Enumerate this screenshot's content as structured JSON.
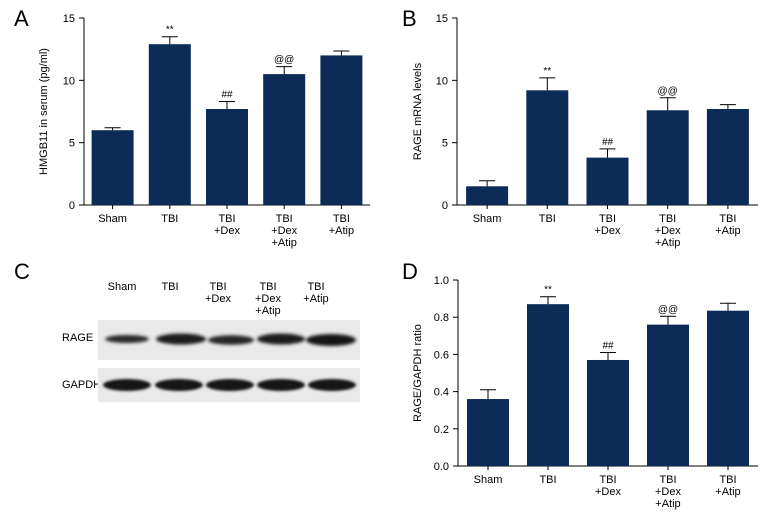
{
  "panels": {
    "a": {
      "letter": "A"
    },
    "b": {
      "letter": "B"
    },
    "c": {
      "letter": "C"
    },
    "d": {
      "letter": "D"
    }
  },
  "bar_color": "#0c2b57",
  "western_blot": {
    "lanes": [
      {
        "lines": [
          "Sham"
        ]
      },
      {
        "lines": [
          "TBI"
        ]
      },
      {
        "lines": [
          "TBI",
          "+Dex"
        ]
      },
      {
        "lines": [
          "TBI",
          "+Dex",
          "+Atip"
        ]
      },
      {
        "lines": [
          "TBI",
          "+Atip"
        ]
      }
    ],
    "rows": [
      "RAGE",
      "GAPDH"
    ]
  },
  "chart_data": [
    {
      "type": "bar",
      "panel": "A",
      "ylabel": "HMGB11 in serum (pg/ml)",
      "xlabel": "",
      "ylim": [
        0,
        15
      ],
      "yticks": [
        0,
        5,
        10,
        15
      ],
      "ytick_labels": [
        "0",
        "5",
        "10",
        "15"
      ],
      "categories": [
        [
          "Sham"
        ],
        [
          "TBI"
        ],
        [
          "TBI",
          "+Dex"
        ],
        [
          "TBI",
          "+Dex",
          "+Atip"
        ],
        [
          "TBI",
          "+Atip"
        ]
      ],
      "values": [
        6.0,
        12.9,
        7.7,
        10.5,
        12.0
      ],
      "errors": [
        0.2,
        0.6,
        0.6,
        0.6,
        0.35
      ],
      "annotations": [
        "",
        "**",
        "##",
        "@@",
        ""
      ]
    },
    {
      "type": "bar",
      "panel": "B",
      "ylabel": "RAGE mRNA levels",
      "xlabel": "",
      "ylim": [
        0,
        15
      ],
      "yticks": [
        0,
        5,
        10,
        15
      ],
      "ytick_labels": [
        "0",
        "5",
        "10",
        "15"
      ],
      "categories": [
        [
          "Sham"
        ],
        [
          "TBI"
        ],
        [
          "TBI",
          "+Dex"
        ],
        [
          "TBI",
          "+Dex",
          "+Atip"
        ],
        [
          "TBI",
          "+Atip"
        ]
      ],
      "values": [
        1.5,
        9.2,
        3.8,
        7.6,
        7.7
      ],
      "errors": [
        0.45,
        1.0,
        0.7,
        1.0,
        0.35
      ],
      "annotations": [
        "",
        "**",
        "##",
        "@@",
        ""
      ]
    },
    {
      "type": "bar",
      "panel": "D",
      "ylabel": "RAGE/GAPDH ratio",
      "xlabel": "",
      "ylim": [
        0,
        1.0
      ],
      "yticks": [
        0,
        0.2,
        0.4,
        0.6,
        0.8,
        1.0
      ],
      "ytick_labels": [
        "0.0",
        "0.2",
        "0.4",
        "0.6",
        "0.8",
        "1.0"
      ],
      "categories": [
        [
          "Sham"
        ],
        [
          "TBI"
        ],
        [
          "TBI",
          "+Dex"
        ],
        [
          "TBI",
          "+Dex",
          "+Atip"
        ],
        [
          "TBI",
          "+Atip"
        ]
      ],
      "values": [
        0.36,
        0.87,
        0.57,
        0.76,
        0.835
      ],
      "errors": [
        0.05,
        0.04,
        0.04,
        0.045,
        0.04
      ],
      "annotations": [
        "",
        "**",
        "##",
        "@@",
        ""
      ]
    }
  ]
}
